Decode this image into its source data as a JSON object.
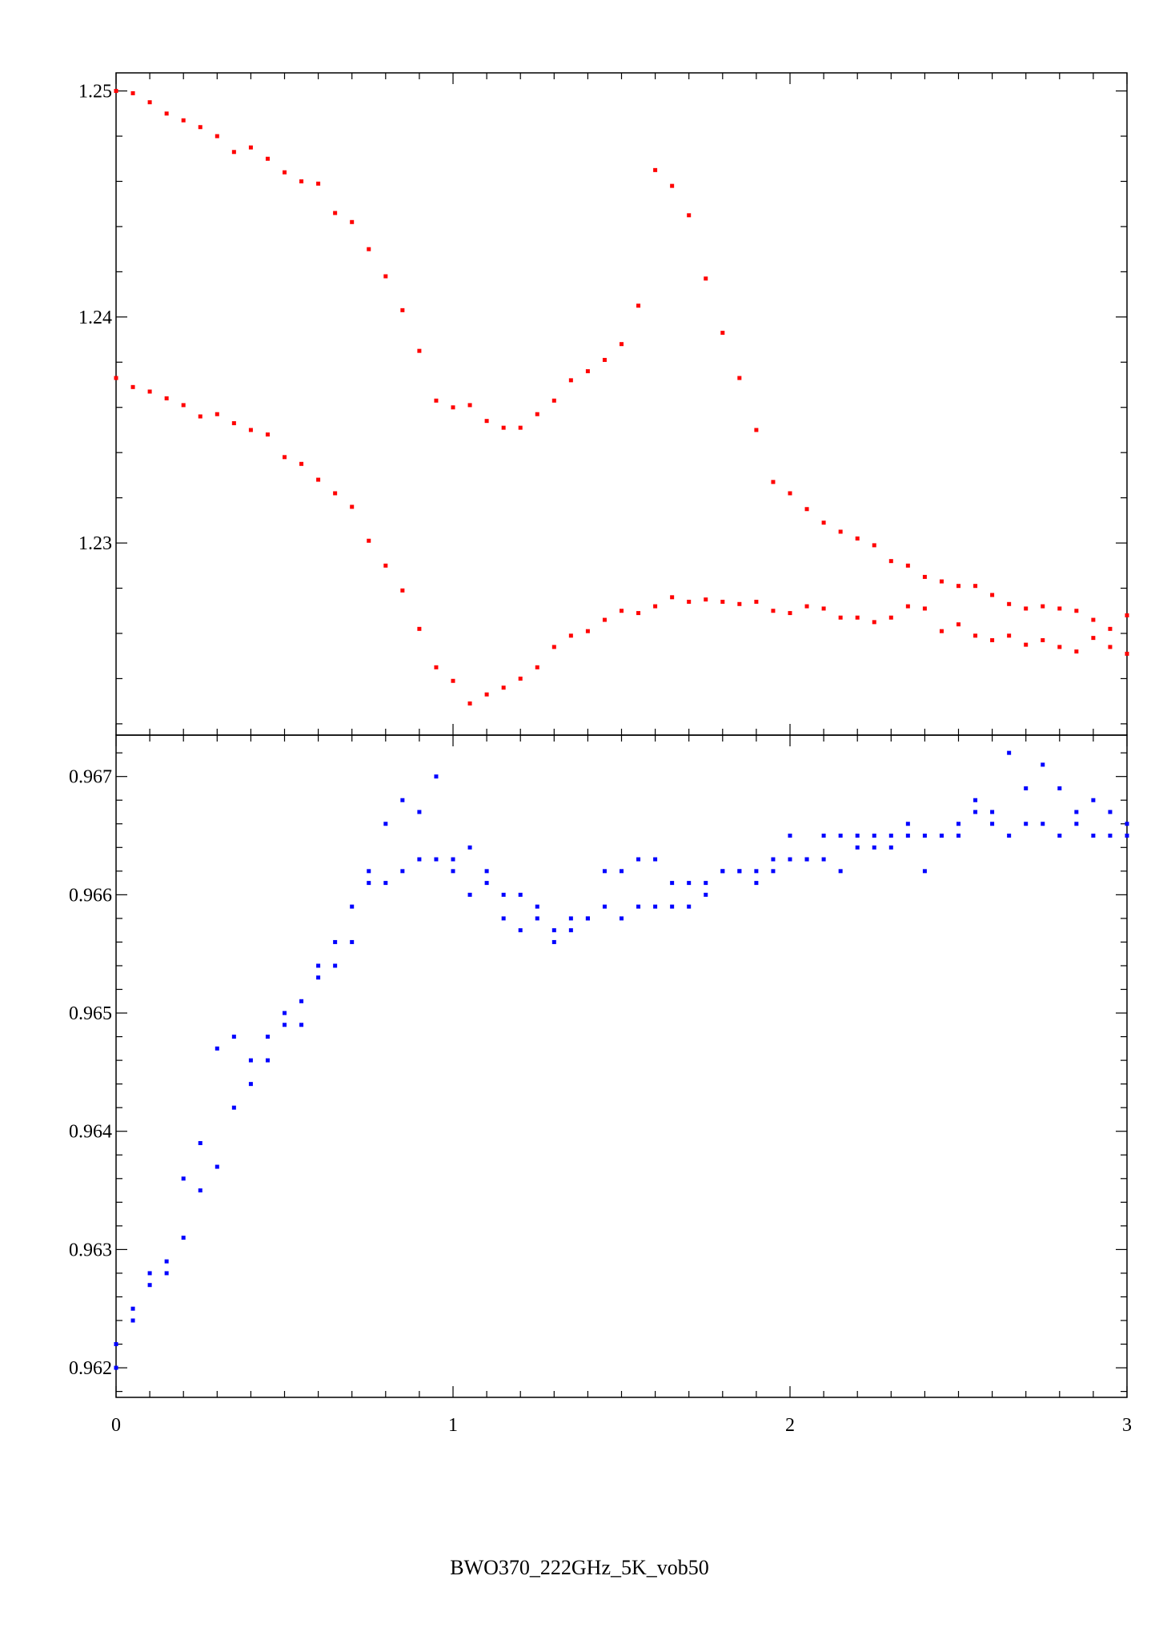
{
  "chart_data": [
    {
      "type": "scatter",
      "panel": "top",
      "xlim": [
        0,
        3
      ],
      "ylim": [
        1.2215,
        1.2508
      ],
      "y_ticks": [
        "1.25",
        "1.24",
        "1.23"
      ],
      "y_tick_values": [
        1.25,
        1.24,
        1.23
      ],
      "grid": false,
      "series": [
        {
          "color": "#ff0000",
          "x": [
            0,
            0.05,
            0.1,
            0.15,
            0.2,
            0.25,
            0.3,
            0.35,
            0.4,
            0.45,
            0.5,
            0.55,
            0.6,
            0.65,
            0.7,
            0.75,
            0.8,
            0.85,
            0.9,
            0.95,
            1,
            1.05,
            1.1,
            1.15,
            1.2,
            1.25,
            1.3,
            1.35,
            1.4,
            1.45,
            1.5,
            1.55,
            1.6,
            1.65,
            1.7,
            1.75,
            1.8,
            1.85,
            1.9,
            1.95,
            2,
            2.05,
            2.1,
            2.15,
            2.2,
            2.25,
            2.3,
            2.35,
            2.4,
            2.45,
            2.5,
            2.55,
            2.6,
            2.65,
            2.7,
            2.75,
            2.8,
            2.85,
            2.9,
            2.95,
            3
          ],
          "y": [
            1.25,
            1.2499,
            1.2495,
            1.249,
            1.2487,
            1.2484,
            1.248,
            1.2473,
            1.2475,
            1.247,
            1.2464,
            1.246,
            1.2459,
            1.2446,
            1.2442,
            1.243,
            1.2418,
            1.2403,
            1.2385,
            1.2363,
            1.236,
            1.2361,
            1.2354,
            1.2351,
            1.2351,
            1.2357,
            1.2363,
            1.2372,
            1.2376,
            1.2381,
            1.2388,
            1.2405,
            1.2465,
            1.2458,
            1.2445,
            1.2417,
            1.2393,
            1.2373,
            1.235,
            1.2327,
            1.2322,
            1.2315,
            1.2309,
            1.2305,
            1.2302,
            1.2299,
            1.2292,
            1.229,
            1.2285,
            1.2283,
            1.2281,
            1.2281,
            1.2277,
            1.2273,
            1.2271,
            1.2272,
            1.2271,
            1.227,
            1.2266,
            1.2262,
            1.2268
          ]
        },
        {
          "color": "#ff0000",
          "x": [
            0,
            0.05,
            0.1,
            0.15,
            0.2,
            0.25,
            0.3,
            0.35,
            0.4,
            0.45,
            0.5,
            0.55,
            0.6,
            0.65,
            0.7,
            0.75,
            0.8,
            0.85,
            0.9,
            0.95,
            1,
            1.05,
            1.1,
            1.15,
            1.2,
            1.25,
            1.3,
            1.35,
            1.4,
            1.45,
            1.5,
            1.55,
            1.6,
            1.65,
            1.7,
            1.75,
            1.8,
            1.85,
            1.9,
            1.95,
            2,
            2.05,
            2.1,
            2.15,
            2.2,
            2.25,
            2.3,
            2.35,
            2.4,
            2.45,
            2.5,
            2.55,
            2.6,
            2.65,
            2.7,
            2.75,
            2.8,
            2.85,
            2.9,
            2.95,
            3
          ],
          "y": [
            1.2373,
            1.2369,
            1.2367,
            1.2364,
            1.2361,
            1.2356,
            1.2357,
            1.2353,
            1.235,
            1.2348,
            1.2338,
            1.2335,
            1.2328,
            1.2322,
            1.2316,
            1.2301,
            1.229,
            1.2279,
            1.2262,
            1.2245,
            1.2239,
            1.2229,
            1.2233,
            1.2236,
            1.224,
            1.2245,
            1.2254,
            1.2259,
            1.2261,
            1.2266,
            1.227,
            1.2269,
            1.2272,
            1.2276,
            1.2274,
            1.2275,
            1.2274,
            1.2273,
            1.2274,
            1.227,
            1.2269,
            1.2272,
            1.2271,
            1.2267,
            1.2267,
            1.2265,
            1.2267,
            1.2272,
            1.2271,
            1.2261,
            1.2264,
            1.2259,
            1.2257,
            1.2259,
            1.2255,
            1.2257,
            1.2254,
            1.2252,
            1.2258,
            1.2254,
            1.2251
          ]
        }
      ]
    },
    {
      "type": "scatter",
      "panel": "bottom",
      "xlim": [
        0,
        3
      ],
      "ylim": [
        0.96175,
        0.96735
      ],
      "y_ticks": [
        "0.967",
        "0.966",
        "0.965",
        "0.964",
        "0.963",
        "0.962"
      ],
      "y_tick_values": [
        0.967,
        0.966,
        0.965,
        0.964,
        0.963,
        0.962
      ],
      "x_ticks": [
        "0",
        "1",
        "2",
        "3"
      ],
      "x_tick_values": [
        0,
        1,
        2,
        3
      ],
      "grid": false,
      "series": [
        {
          "color": "#0000ff",
          "x": [
            0,
            0.05,
            0.1,
            0.15,
            0.2,
            0.25,
            0.3,
            0.35,
            0.4,
            0.45,
            0.5,
            0.55,
            0.6,
            0.65,
            0.7,
            0.75,
            0.8,
            0.85,
            0.9,
            0.95,
            1,
            1.05,
            1.1,
            1.15,
            1.2,
            1.25,
            1.3,
            1.35,
            1.4,
            1.45,
            1.5,
            1.55,
            1.6,
            1.65,
            1.7,
            1.75,
            1.8,
            1.85,
            1.9,
            1.95,
            2,
            2.05,
            2.1,
            2.15,
            2.2,
            2.25,
            2.3,
            2.35,
            2.4,
            2.45,
            2.5,
            2.55,
            2.6,
            2.65,
            2.7,
            2.75,
            2.8,
            2.85,
            2.9,
            2.95,
            3
          ],
          "y": [
            0.9622,
            0.9625,
            0.9628,
            0.9629,
            0.9636,
            0.9639,
            0.9647,
            0.9648,
            0.9646,
            0.9648,
            0.965,
            0.9651,
            0.9654,
            0.9656,
            0.9659,
            0.9662,
            0.9666,
            0.9668,
            0.9667,
            0.967,
            0.9663,
            0.9664,
            0.9662,
            0.966,
            0.966,
            0.9659,
            0.9657,
            0.9658,
            0.9658,
            0.9662,
            0.9662,
            0.9663,
            0.9663,
            0.9661,
            0.9661,
            0.9661,
            0.9662,
            0.9662,
            0.9662,
            0.9663,
            0.9665,
            0.9663,
            0.9665,
            0.9665,
            0.9665,
            0.9665,
            0.9665,
            0.9666,
            0.9665,
            0.9665,
            0.9666,
            0.9668,
            0.9667,
            0.9672,
            0.9669,
            0.9671,
            0.9669,
            0.9667,
            0.9668,
            0.9667,
            0.9666
          ]
        },
        {
          "color": "#0000ff",
          "x": [
            0,
            0.05,
            0.1,
            0.15,
            0.2,
            0.25,
            0.3,
            0.35,
            0.4,
            0.45,
            0.5,
            0.55,
            0.6,
            0.65,
            0.7,
            0.75,
            0.8,
            0.85,
            0.9,
            0.95,
            1,
            1.05,
            1.1,
            1.15,
            1.2,
            1.25,
            1.3,
            1.35,
            1.4,
            1.45,
            1.5,
            1.55,
            1.6,
            1.65,
            1.7,
            1.75,
            1.8,
            1.85,
            1.9,
            1.95,
            2,
            2.05,
            2.1,
            2.15,
            2.2,
            2.25,
            2.3,
            2.35,
            2.4,
            2.45,
            2.5,
            2.55,
            2.6,
            2.65,
            2.7,
            2.75,
            2.8,
            2.85,
            2.9,
            2.95,
            3
          ],
          "y": [
            0.962,
            0.9624,
            0.9627,
            0.9628,
            0.9631,
            0.9635,
            0.9637,
            0.9642,
            0.9644,
            0.9646,
            0.9649,
            0.9649,
            0.9653,
            0.9654,
            0.9656,
            0.9661,
            0.9661,
            0.9662,
            0.9663,
            0.9663,
            0.9662,
            0.966,
            0.9661,
            0.9658,
            0.9657,
            0.9658,
            0.9656,
            0.9657,
            0.9658,
            0.9659,
            0.9658,
            0.9659,
            0.9659,
            0.9659,
            0.9659,
            0.966,
            0.9662,
            0.9662,
            0.9661,
            0.9662,
            0.9663,
            0.9663,
            0.9663,
            0.9662,
            0.9664,
            0.9664,
            0.9664,
            0.9665,
            0.9662,
            0.9665,
            0.9665,
            0.9667,
            0.9666,
            0.9665,
            0.9666,
            0.9666,
            0.9665,
            0.9666,
            0.9665,
            0.9665,
            0.9665
          ]
        }
      ]
    }
  ],
  "caption": "BWO370_222GHz_5K_vob50"
}
